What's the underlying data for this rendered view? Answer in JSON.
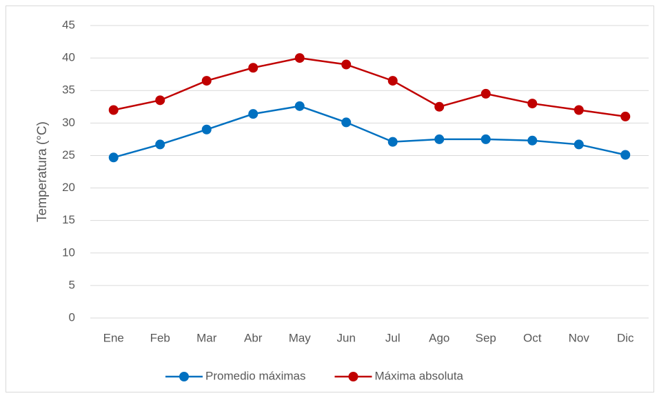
{
  "chart_data": {
    "type": "line",
    "ylabel": "Temperatura (°C)",
    "categories": [
      "Ene",
      "Feb",
      "Mar",
      "Abr",
      "May",
      "Jun",
      "Jul",
      "Ago",
      "Sep",
      "Oct",
      "Nov",
      "Dic"
    ],
    "series": [
      {
        "name": "Promedio máximas",
        "color": "#0070c0",
        "values": [
          24.7,
          26.7,
          29.0,
          31.4,
          32.6,
          30.1,
          27.1,
          27.5,
          27.5,
          27.3,
          26.7,
          25.1
        ]
      },
      {
        "name": "Máxima absoluta",
        "color": "#c00000",
        "values": [
          32,
          33.5,
          36.5,
          38.5,
          40,
          39,
          36.5,
          32.5,
          34.5,
          33,
          32,
          31
        ]
      }
    ],
    "ylim": [
      0,
      45
    ],
    "yticks": [
      0,
      5,
      10,
      15,
      20,
      25,
      30,
      35,
      40,
      45
    ],
    "grid": true,
    "legend": "bottom"
  }
}
